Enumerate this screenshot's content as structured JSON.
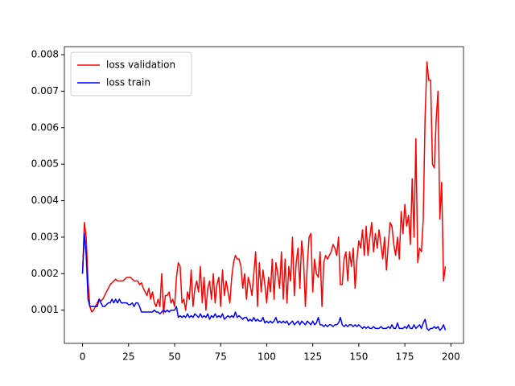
{
  "chart_data": {
    "type": "line",
    "x": [
      0,
      1,
      2,
      3,
      4,
      5,
      6,
      7,
      8,
      9,
      10,
      11,
      12,
      13,
      14,
      15,
      16,
      17,
      18,
      19,
      20,
      21,
      22,
      23,
      24,
      25,
      26,
      27,
      28,
      29,
      30,
      31,
      32,
      33,
      34,
      35,
      36,
      37,
      38,
      39,
      40,
      41,
      42,
      43,
      44,
      45,
      46,
      47,
      48,
      49,
      50,
      51,
      52,
      53,
      54,
      55,
      56,
      57,
      58,
      59,
      60,
      61,
      62,
      63,
      64,
      65,
      66,
      67,
      68,
      69,
      70,
      71,
      72,
      73,
      74,
      75,
      76,
      77,
      78,
      79,
      80,
      81,
      82,
      83,
      84,
      85,
      86,
      87,
      88,
      89,
      90,
      91,
      92,
      93,
      94,
      95,
      96,
      97,
      98,
      99,
      100,
      101,
      102,
      103,
      104,
      105,
      106,
      107,
      108,
      109,
      110,
      111,
      112,
      113,
      114,
      115,
      116,
      117,
      118,
      119,
      120,
      121,
      122,
      123,
      124,
      125,
      126,
      127,
      128,
      129,
      130,
      131,
      132,
      133,
      134,
      135,
      136,
      137,
      138,
      139,
      140,
      141,
      142,
      143,
      144,
      145,
      146,
      147,
      148,
      149,
      150,
      151,
      152,
      153,
      154,
      155,
      156,
      157,
      158,
      159,
      160,
      161,
      162,
      163,
      164,
      165,
      166,
      167,
      168,
      169,
      170,
      171,
      172,
      173,
      174,
      175,
      176,
      177,
      178,
      179,
      180,
      181,
      182,
      183,
      184,
      185,
      186,
      187,
      188,
      189,
      190,
      191,
      192,
      193,
      194,
      195,
      196,
      197
    ],
    "series": [
      {
        "name": "loss validation",
        "color": "#ff0000",
        "values": [
          0.002,
          0.0034,
          0.003,
          0.0018,
          0.0011,
          0.00095,
          0.001,
          0.0011,
          0.0012,
          0.0013,
          0.00125,
          0.0013,
          0.0014,
          0.0015,
          0.0016,
          0.0017,
          0.00175,
          0.0018,
          0.00185,
          0.0018,
          0.0018,
          0.0018,
          0.0018,
          0.00185,
          0.0019,
          0.0019,
          0.0019,
          0.00185,
          0.0018,
          0.0018,
          0.0018,
          0.0017,
          0.00175,
          0.0016,
          0.0015,
          0.0014,
          0.0016,
          0.0013,
          0.0015,
          0.0012,
          0.0011,
          0.0013,
          0.0011,
          0.002,
          0.0009,
          0.0014,
          0.0014,
          0.0015,
          0.0012,
          0.0013,
          0.0011,
          0.0019,
          0.0023,
          0.0022,
          0.0012,
          0.0013,
          0.001,
          0.0015,
          0.0013,
          0.0021,
          0.0011,
          0.0016,
          0.0018,
          0.0015,
          0.0022,
          0.0012,
          0.0019,
          0.001,
          0.0016,
          0.0018,
          0.0013,
          0.002,
          0.0012,
          0.0017,
          0.0019,
          0.0011,
          0.0021,
          0.0014,
          0.0018,
          0.0015,
          0.0012,
          0.0019,
          0.0023,
          0.0025,
          0.0024,
          0.0024,
          0.0022,
          0.0016,
          0.002,
          0.0013,
          0.0019,
          0.0017,
          0.0014,
          0.002,
          0.0026,
          0.0011,
          0.0023,
          0.0015,
          0.0021,
          0.0017,
          0.0012,
          0.0019,
          0.0015,
          0.0024,
          0.0013,
          0.0023,
          0.002,
          0.0016,
          0.0026,
          0.0013,
          0.0024,
          0.0012,
          0.0022,
          0.0018,
          0.003,
          0.0014,
          0.0023,
          0.0027,
          0.0016,
          0.0029,
          0.0024,
          0.0011,
          0.0022,
          0.003,
          0.0031,
          0.0015,
          0.0024,
          0.002,
          0.0019,
          0.0026,
          0.0011,
          0.0023,
          0.0025,
          0.0024,
          0.0025,
          0.0026,
          0.0028,
          0.0027,
          0.0025,
          0.003,
          0.0017,
          0.0017,
          0.0024,
          0.0026,
          0.0018,
          0.0026,
          0.0022,
          0.0027,
          0.0016,
          0.0024,
          0.0029,
          0.0027,
          0.0032,
          0.0025,
          0.0033,
          0.0025,
          0.003,
          0.0034,
          0.0026,
          0.0031,
          0.0027,
          0.0032,
          0.0028,
          0.0024,
          0.003,
          0.0021,
          0.0028,
          0.0034,
          0.0033,
          0.0028,
          0.0025,
          0.003,
          0.0024,
          0.0037,
          0.0031,
          0.0039,
          0.0033,
          0.0036,
          0.0028,
          0.0046,
          0.003,
          0.0057,
          0.0023,
          0.0027,
          0.0026,
          0.0035,
          0.0063,
          0.0078,
          0.0073,
          0.0073,
          0.005,
          0.0049,
          0.0062,
          0.007,
          0.0035,
          0.0045,
          0.0018,
          0.0022
        ]
      },
      {
        "name": "loss train",
        "color": "#0000ff",
        "values": [
          0.002,
          0.0031,
          0.0025,
          0.0013,
          0.0011,
          0.0011,
          0.0011,
          0.0011,
          0.0011,
          0.0013,
          0.0012,
          0.0011,
          0.0011,
          0.00115,
          0.0012,
          0.0012,
          0.0013,
          0.0012,
          0.0013,
          0.0012,
          0.0013,
          0.0012,
          0.0012,
          0.0012,
          0.0012,
          0.00115,
          0.00115,
          0.0012,
          0.0011,
          0.0012,
          0.0012,
          0.0011,
          0.00095,
          0.00095,
          0.00095,
          0.00095,
          0.00095,
          0.00095,
          0.00095,
          0.001,
          0.00095,
          0.00095,
          0.0009,
          0.00095,
          0.001,
          0.00095,
          0.001,
          0.00095,
          0.001,
          0.001,
          0.001,
          0.0011,
          0.0008,
          0.00085,
          0.0008,
          0.00085,
          0.0008,
          0.0009,
          0.0008,
          0.00085,
          0.0008,
          0.0009,
          0.00085,
          0.0008,
          0.0009,
          0.0008,
          0.00085,
          0.0008,
          0.0009,
          0.00075,
          0.00085,
          0.0008,
          0.0009,
          0.0008,
          0.00085,
          0.0008,
          0.0009,
          0.00075,
          0.0008,
          0.00085,
          0.0008,
          0.00085,
          0.0008,
          0.00095,
          0.0008,
          0.00085,
          0.0008,
          0.00075,
          0.0008,
          0.0008,
          0.0007,
          0.00075,
          0.0007,
          0.0008,
          0.0007,
          0.00075,
          0.0007,
          0.0007,
          0.0008,
          0.00065,
          0.0007,
          0.00065,
          0.0007,
          0.00065,
          0.0007,
          0.0008,
          0.00065,
          0.0007,
          0.00065,
          0.0007,
          0.00065,
          0.0007,
          0.0006,
          0.00065,
          0.0007,
          0.0006,
          0.00065,
          0.0007,
          0.0006,
          0.0007,
          0.00065,
          0.0006,
          0.0007,
          0.00065,
          0.0006,
          0.0007,
          0.0006,
          0.00065,
          0.0008,
          0.0006,
          0.0006,
          0.00055,
          0.0006,
          0.00055,
          0.0006,
          0.0006,
          0.00055,
          0.0006,
          0.0006,
          0.00065,
          0.0008,
          0.0006,
          0.00055,
          0.0006,
          0.00055,
          0.0006,
          0.0006,
          0.00055,
          0.0006,
          0.00055,
          0.0006,
          0.00055,
          0.0005,
          0.00055,
          0.0005,
          0.00055,
          0.0005,
          0.0005,
          0.00055,
          0.0005,
          0.0005,
          0.0005,
          0.00055,
          0.0005,
          0.0005,
          0.0005,
          0.00055,
          0.0005,
          0.0006,
          0.0005,
          0.0005,
          0.00065,
          0.0005,
          0.0005,
          0.0005,
          0.00055,
          0.0005,
          0.0006,
          0.0005,
          0.0005,
          0.0006,
          0.0005,
          0.00055,
          0.0006,
          0.0005,
          0.00065,
          0.00075,
          0.0005,
          0.00045,
          0.0005,
          0.0005,
          0.00055,
          0.0005,
          0.00055,
          0.00045,
          0.0005,
          0.0006,
          0.00045
        ]
      }
    ],
    "xlim": [
      -9.85,
      206.85
    ],
    "xticks": [
      0,
      25,
      50,
      75,
      100,
      125,
      150,
      175,
      200
    ],
    "ylim": [
      9e-05,
      0.00822
    ],
    "yticks": [
      0.001,
      0.002,
      0.003,
      0.004,
      0.005,
      0.006,
      0.007,
      0.008
    ],
    "grid": false,
    "legend": "upper left"
  }
}
